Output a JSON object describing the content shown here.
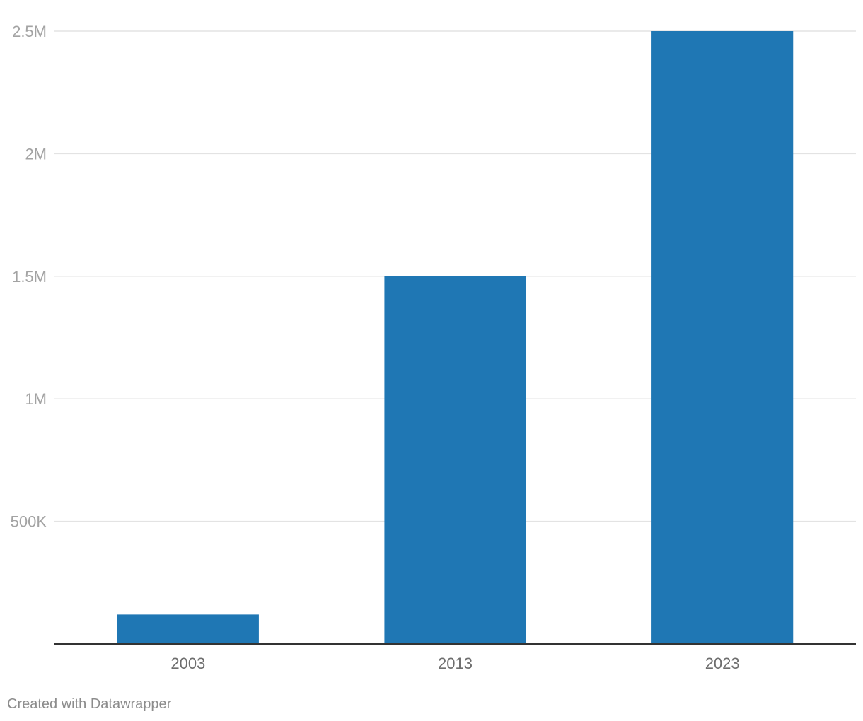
{
  "chart_data": {
    "type": "bar",
    "categories": [
      "2003",
      "2013",
      "2023"
    ],
    "values": [
      120000,
      1500000,
      2500000
    ],
    "ylim": [
      0,
      2500000
    ],
    "yticks": [
      {
        "value": 500000,
        "label": "500K"
      },
      {
        "value": 1000000,
        "label": "1M"
      },
      {
        "value": 1500000,
        "label": "1.5M"
      },
      {
        "value": 2000000,
        "label": "2M"
      },
      {
        "value": 2500000,
        "label": "2.5M"
      }
    ],
    "grid": true,
    "bar_color": "#1f77b4"
  },
  "footer": {
    "credit": "Created with Datawrapper"
  }
}
